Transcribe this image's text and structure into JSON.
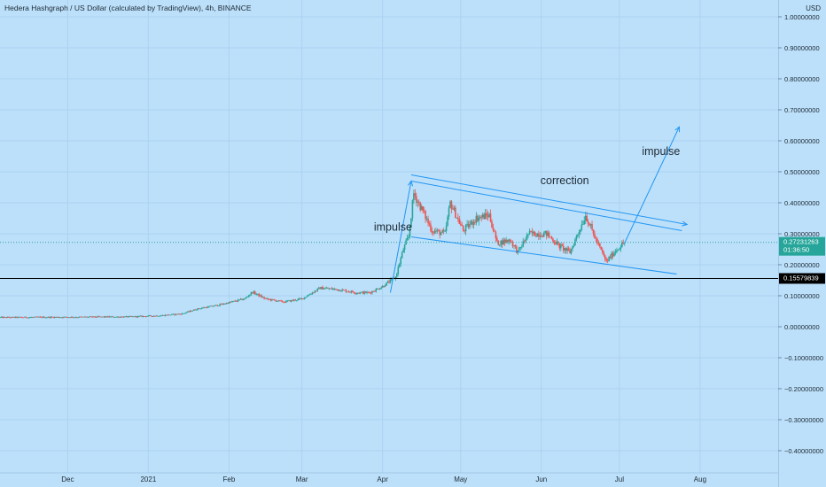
{
  "header": {
    "symbol_title": "Hedera Hashgraph / US Dollar (calculated by TradingView), 4h, BINANCE",
    "currency": "USD"
  },
  "price_axis": {
    "ticks": [
      {
        "value": 1.0,
        "label": "1.00000000"
      },
      {
        "value": 0.9,
        "label": "0.90000000"
      },
      {
        "value": 0.8,
        "label": "0.80000000"
      },
      {
        "value": 0.7,
        "label": "0.70000000"
      },
      {
        "value": 0.6,
        "label": "0.60000000"
      },
      {
        "value": 0.5,
        "label": "0.50000000"
      },
      {
        "value": 0.4,
        "label": "0.40000000"
      },
      {
        "value": 0.3,
        "label": "0.30000000"
      },
      {
        "value": 0.2,
        "label": "0.20000000"
      },
      {
        "value": 0.1,
        "label": "0.10000000"
      },
      {
        "value": 0.0,
        "label": "0.00000000"
      },
      {
        "value": -0.1,
        "label": "−0.10000000"
      },
      {
        "value": -0.2,
        "label": "−0.20000000"
      },
      {
        "value": -0.3,
        "label": "−0.30000000"
      },
      {
        "value": -0.4,
        "label": "−0.40000000"
      }
    ],
    "last_price": {
      "value": 0.27231263,
      "label": "0.27231263",
      "countdown": "01:36:50",
      "color": "#26a69a"
    },
    "horizontal_line": {
      "value": 0.15579839,
      "label": "0.15579839",
      "color": "#000000"
    }
  },
  "time_axis": {
    "ticks": [
      {
        "label": "Dec",
        "date": "2020-12-01"
      },
      {
        "label": "2021",
        "date": "2021-01-01"
      },
      {
        "label": "Feb",
        "date": "2021-02-01"
      },
      {
        "label": "Mar",
        "date": "2021-03-01"
      },
      {
        "label": "Apr",
        "date": "2021-04-01"
      },
      {
        "label": "May",
        "date": "2021-05-01"
      },
      {
        "label": "Jun",
        "date": "2021-06-01"
      },
      {
        "label": "Jul",
        "date": "2021-07-01"
      },
      {
        "label": "Aug",
        "date": "2021-08-01"
      }
    ]
  },
  "colors": {
    "background": "#bde0fa",
    "grid": "#a9d2f3",
    "up_candle": "#26a69a",
    "down_candle": "#ef5350",
    "drawing": "#2196f3",
    "text": "#1c2a36"
  },
  "chart_data": {
    "type": "candlestick",
    "title": "Hedera Hashgraph / US Dollar (calculated by TradingView), 4h, BINANCE",
    "ylabel": "USD",
    "ylim": [
      -0.45,
      1.05
    ],
    "xlim": [
      "2020-11-05",
      "2021-08-31"
    ],
    "grid": true,
    "price_path": [
      [
        "2020-11-05",
        0.03
      ],
      [
        "2020-12-01",
        0.031
      ],
      [
        "2020-12-25",
        0.032
      ],
      [
        "2021-01-06",
        0.036
      ],
      [
        "2021-01-14",
        0.042
      ],
      [
        "2021-01-20",
        0.058
      ],
      [
        "2021-01-28",
        0.07
      ],
      [
        "2021-02-07",
        0.09
      ],
      [
        "2021-02-10",
        0.112
      ],
      [
        "2021-02-15",
        0.09
      ],
      [
        "2021-02-22",
        0.08
      ],
      [
        "2021-03-01",
        0.09
      ],
      [
        "2021-03-08",
        0.125
      ],
      [
        "2021-03-15",
        0.12
      ],
      [
        "2021-03-22",
        0.11
      ],
      [
        "2021-03-27",
        0.11
      ],
      [
        "2021-04-01",
        0.13
      ],
      [
        "2021-04-06",
        0.16
      ],
      [
        "2021-04-09",
        0.25
      ],
      [
        "2021-04-11",
        0.29
      ],
      [
        "2021-04-13",
        0.43
      ],
      [
        "2021-04-16",
        0.38
      ],
      [
        "2021-04-20",
        0.31
      ],
      [
        "2021-04-25",
        0.3
      ],
      [
        "2021-04-27",
        0.4
      ],
      [
        "2021-05-02",
        0.31
      ],
      [
        "2021-05-07",
        0.35
      ],
      [
        "2021-05-12",
        0.36
      ],
      [
        "2021-05-15",
        0.27
      ],
      [
        "2021-05-20",
        0.28
      ],
      [
        "2021-05-23",
        0.24
      ],
      [
        "2021-05-27",
        0.3
      ],
      [
        "2021-06-03",
        0.3
      ],
      [
        "2021-06-08",
        0.26
      ],
      [
        "2021-06-12",
        0.24
      ],
      [
        "2021-06-18",
        0.36
      ],
      [
        "2021-06-22",
        0.28
      ],
      [
        "2021-06-26",
        0.21
      ],
      [
        "2021-06-30",
        0.25
      ],
      [
        "2021-07-03",
        0.272
      ]
    ],
    "annotations": [
      {
        "text": "impulse",
        "date": "2021-04-05",
        "price": 0.31
      },
      {
        "text": "correction",
        "date": "2021-06-10",
        "price": 0.46
      },
      {
        "text": "impulse",
        "date": "2021-07-17",
        "price": 0.555
      }
    ],
    "drawings": [
      {
        "name": "impulse-arrow-1",
        "from": [
          "2021-04-04",
          0.11
        ],
        "to": [
          "2021-04-12",
          0.47
        ],
        "arrow": true
      },
      {
        "name": "channel-upper-line",
        "from": [
          "2021-04-12",
          0.49
        ],
        "to": [
          "2021-07-27",
          0.33
        ],
        "arrow": true
      },
      {
        "name": "channel-mid-line",
        "from": [
          "2021-04-12",
          0.47
        ],
        "to": [
          "2021-07-25",
          0.31
        ],
        "arrow": false
      },
      {
        "name": "channel-lower-line",
        "from": [
          "2021-04-12",
          0.29
        ],
        "to": [
          "2021-07-23",
          0.17
        ],
        "arrow": false
      },
      {
        "name": "impulse-arrow-2",
        "from": [
          "2021-07-03",
          0.27
        ],
        "to": [
          "2021-07-24",
          0.645
        ],
        "arrow": true
      }
    ]
  }
}
